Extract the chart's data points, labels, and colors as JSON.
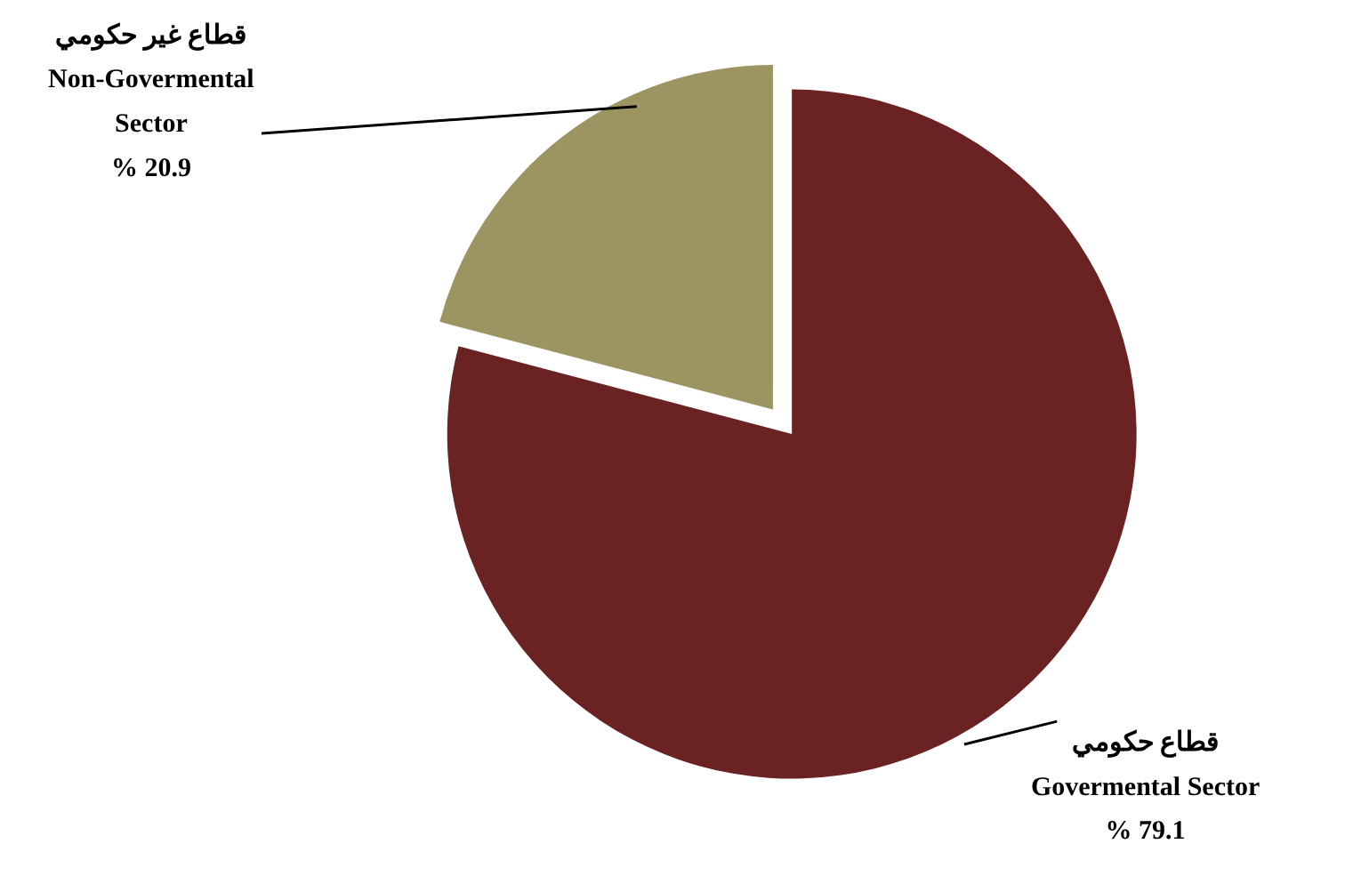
{
  "chart_data": {
    "type": "pie",
    "categories": [
      "قطاع حكومي\nGovermental Sector",
      "قطاع غير حكومي\nNon-Govermental\nSector"
    ],
    "values": [
      79.1,
      20.9
    ],
    "colors": [
      "#6b2222",
      "#9c9561"
    ],
    "value_labels": [
      "% 79.1",
      "% 20.9"
    ]
  }
}
